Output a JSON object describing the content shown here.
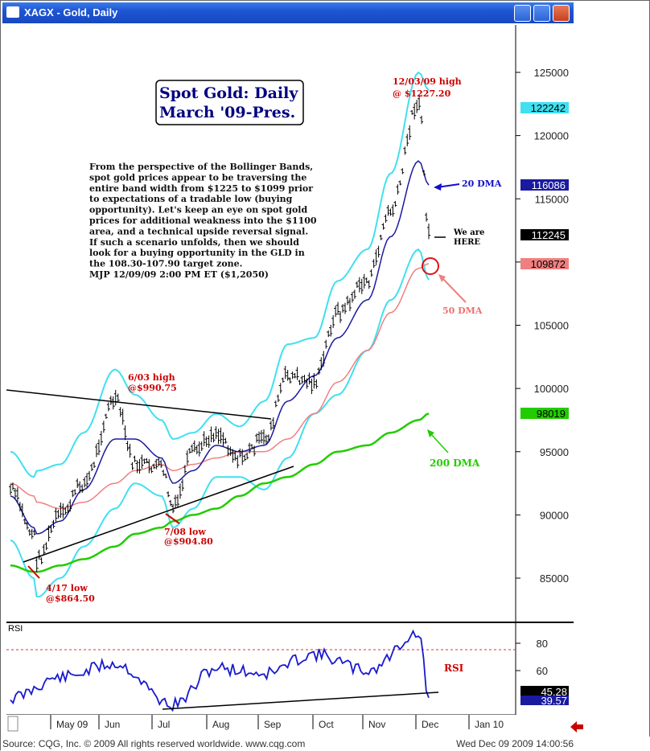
{
  "window": {
    "title": "XAGX - Gold, Daily",
    "footer_source": "Source: CQG, Inc. © 2009 All rights reserved worldwide. www.cqg.com",
    "footer_timestamp": "Wed Dec 09 2009 14:00:56"
  },
  "annotations": {
    "title_line1": "Spot Gold: Daily",
    "title_line2": "March '09-Pres.",
    "commentary": [
      "From the perspective of the Bollinger Bands,",
      "spot gold prices appear to be traversing the",
      "entire band width from $1225 to $1099 prior",
      "to expectations of a tradable low (buying",
      "opportunity).  Let's keep an eye on spot gold",
      "prices for additional weakness into the $1100",
      "area, and a technical upside reversal signal.",
      "If such a scenario unfolds, then we should",
      "look for a buying opportunity in the GLD in",
      "the 108.30-107.90 target zone.",
      "MJP  12/09/09  2:00 PM ET  ($1,2050)"
    ],
    "high_dec": [
      "12/03/09 high",
      "@ $1227.20"
    ],
    "high_jun": [
      "6/03 high",
      "@$990.75"
    ],
    "low_jul": [
      "7/08 low",
      "@$904.80"
    ],
    "low_apr": [
      "4/17 low",
      "@$864.50"
    ],
    "dma20": "20 DMA",
    "dma50": "50 DMA",
    "dma200": "200 DMA",
    "we_are_here": [
      "We are",
      "HERE"
    ],
    "rsi_label": "RSI",
    "rsi_panel_label": "RSI"
  },
  "colors": {
    "price_bars": "#000000",
    "dma20": "#1a1aa0",
    "dma50": "#f08080",
    "dma200": "#22cc00",
    "bollinger": "#40e0f0",
    "annotation_red": "#cc0000",
    "rsi_line": "#1a1acc"
  },
  "chart_data": [
    {
      "type": "line",
      "title": "Spot Gold: Daily March '09-Pres.",
      "x_ticks": [
        "May 09",
        "Jun",
        "Jul",
        "Aug",
        "Sep",
        "Oct",
        "Nov",
        "Dec",
        "Jan 10"
      ],
      "y_ticks": [
        85000,
        90000,
        95000,
        100000,
        105000,
        110000,
        115000,
        120000,
        125000
      ],
      "ylim": [
        80000,
        128000
      ],
      "price_tags": [
        {
          "value": 122242,
          "label": "122242",
          "color": "#40e0f0"
        },
        {
          "value": 116086,
          "label": "116086",
          "color": "#1a1aa0"
        },
        {
          "value": 112245,
          "label": "112245",
          "color": "#000000"
        },
        {
          "value": 109872,
          "label": "109872",
          "color": "#f08080"
        },
        {
          "value": 98019,
          "label": "98019",
          "color": "#22cc00"
        }
      ],
      "x": [
        "2009-04-01",
        "2009-04-15",
        "2009-04-17",
        "2009-05-01",
        "2009-05-15",
        "2009-06-03",
        "2009-06-15",
        "2009-07-01",
        "2009-07-08",
        "2009-07-20",
        "2009-08-03",
        "2009-08-17",
        "2009-09-01",
        "2009-09-15",
        "2009-10-01",
        "2009-10-15",
        "2009-11-02",
        "2009-11-16",
        "2009-12-03",
        "2009-12-09"
      ],
      "series": [
        {
          "name": "Gold Daily Close",
          "values": [
            92000,
            88500,
            86450,
            90000,
            92500,
            99075,
            94000,
            93800,
            90480,
            95000,
            96500,
            94500,
            96000,
            101000,
            100500,
            106000,
            108500,
            114000,
            122720,
            112245
          ]
        },
        {
          "name": "20 DMA",
          "values": [
            91500,
            89000,
            88500,
            89500,
            92000,
            96000,
            96000,
            94500,
            92500,
            93500,
            95500,
            95000,
            95500,
            99000,
            101000,
            104000,
            107000,
            112000,
            118000,
            116086
          ]
        },
        {
          "name": "50 DMA",
          "values": [
            92500,
            91500,
            91000,
            90500,
            91000,
            92500,
            93500,
            94000,
            93500,
            94000,
            94500,
            95000,
            95000,
            96000,
            98000,
            100500,
            103000,
            106000,
            109500,
            109872
          ]
        },
        {
          "name": "200 DMA",
          "values": [
            86000,
            85500,
            85500,
            86000,
            86500,
            87500,
            88500,
            89000,
            89500,
            90000,
            90500,
            91500,
            92500,
            93000,
            94000,
            95000,
            95500,
            96500,
            97500,
            98019
          ]
        }
      ]
    },
    {
      "type": "line",
      "title": "RSI",
      "y_ticks": [
        60,
        80
      ],
      "ylim": [
        30,
        90
      ],
      "price_tags": [
        {
          "value": 45.28,
          "label": "45.28"
        },
        {
          "value": 39.57,
          "label": "39.57"
        }
      ],
      "x": [
        "2009-04-01",
        "2009-05-01",
        "2009-06-03",
        "2009-07-08",
        "2009-08-03",
        "2009-09-01",
        "2009-10-01",
        "2009-11-02",
        "2009-12-03",
        "2009-12-09"
      ],
      "series": [
        {
          "name": "RSI",
          "values": [
            40,
            55,
            65,
            35,
            62,
            58,
            72,
            60,
            87,
            40
          ]
        }
      ]
    }
  ]
}
